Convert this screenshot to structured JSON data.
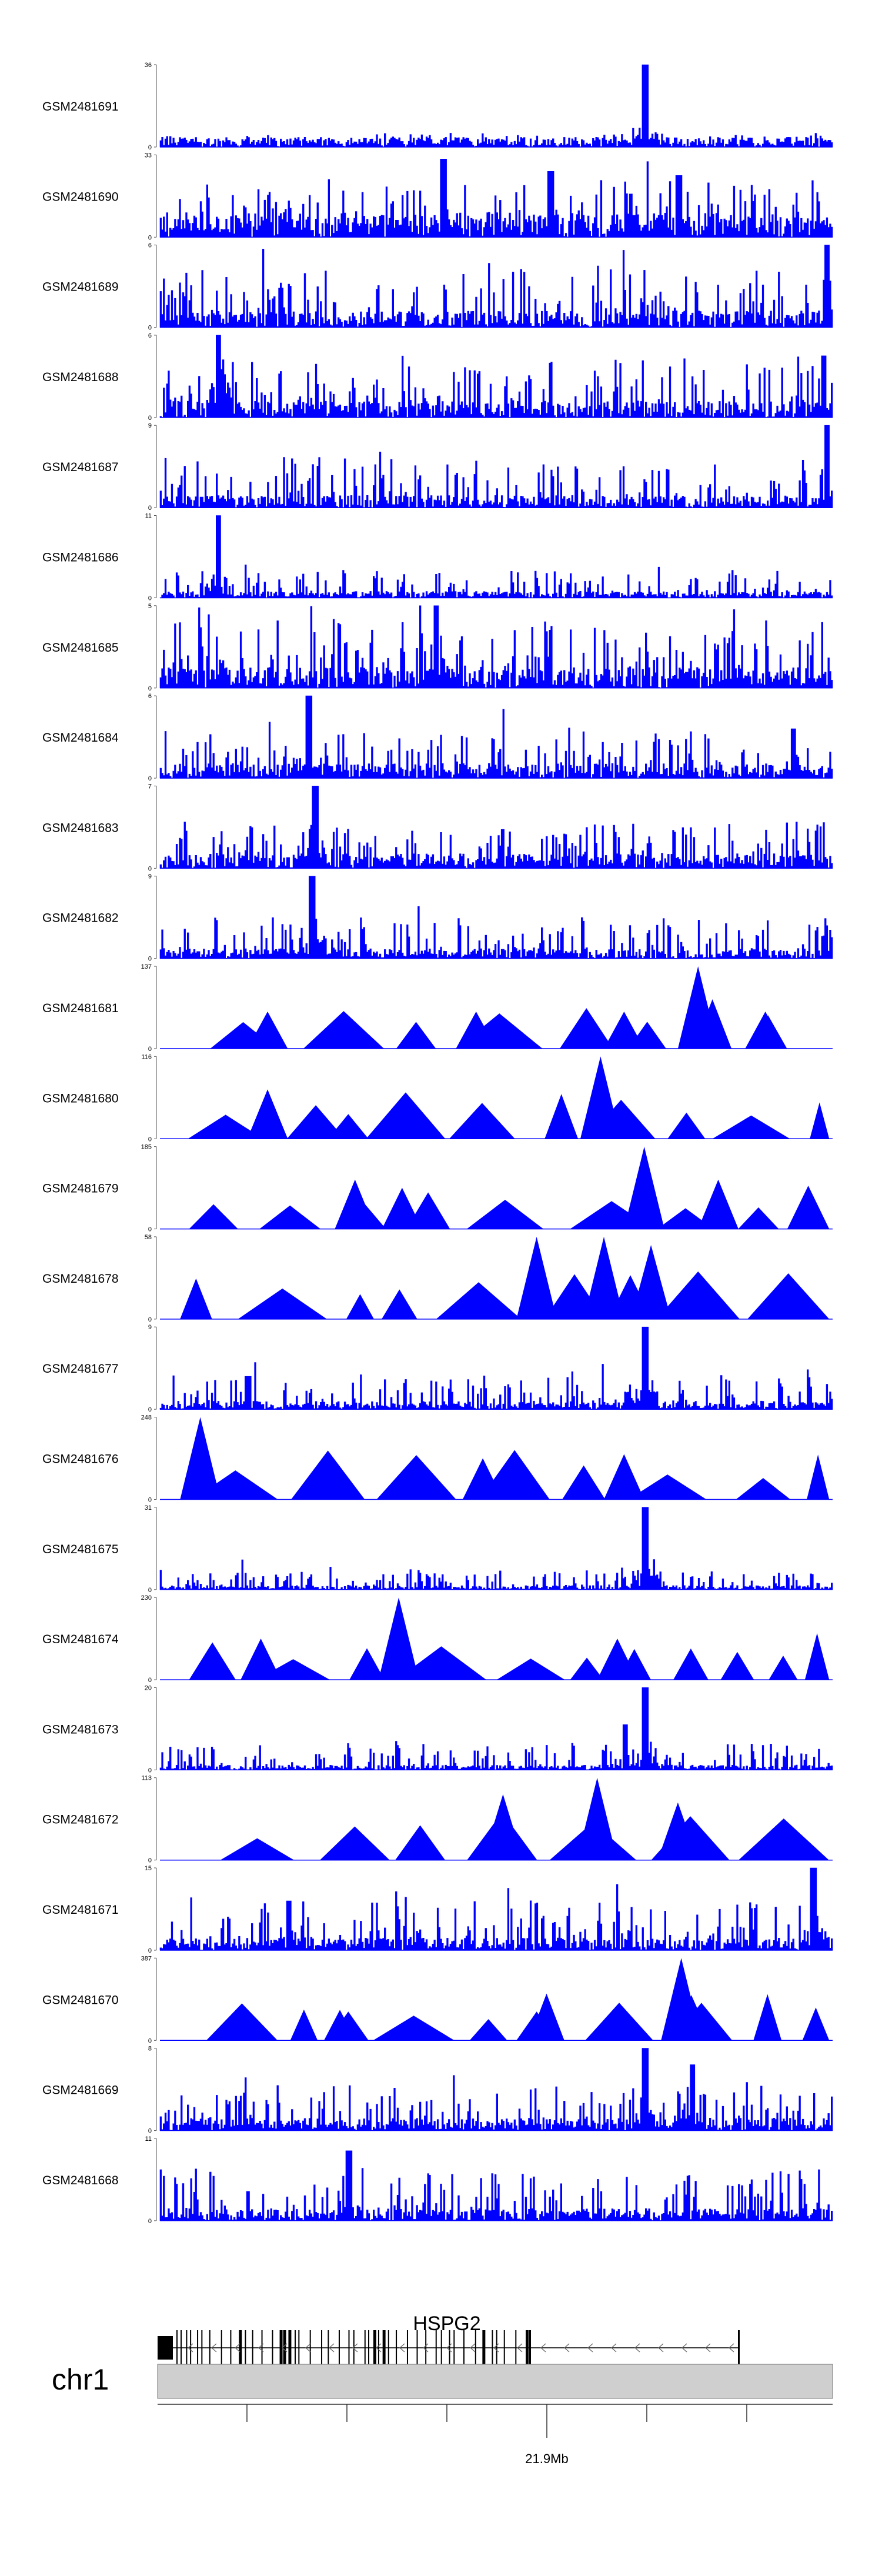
{
  "chart_data": {
    "type": "area",
    "color": "#0000ff",
    "tracks": [
      {
        "name": "GSM2481691",
        "ymax": 36,
        "peaks": [
          [
            0.72,
            1.0
          ]
        ],
        "base": 0.12,
        "noise": 0.06,
        "style": "dense"
      },
      {
        "name": "GSM2481690",
        "ymax": 33,
        "peaks": [
          [
            0.42,
            0.95
          ],
          [
            0.58,
            0.8
          ],
          [
            0.77,
            0.75
          ]
        ],
        "base": 0.3,
        "noise": 0.45,
        "style": "mixed"
      },
      {
        "name": "GSM2481689",
        "ymax": 6,
        "peaks": [
          [
            0.99,
            1.0
          ]
        ],
        "base": 0.2,
        "noise": 0.6,
        "style": "dense"
      },
      {
        "name": "GSM2481688",
        "ymax": 6,
        "peaks": [
          [
            0.085,
            1.0
          ],
          [
            0.985,
            0.75
          ]
        ],
        "base": 0.2,
        "noise": 0.55,
        "style": "dense"
      },
      {
        "name": "GSM2481687",
        "ymax": 9,
        "peaks": [
          [
            0.99,
            1.0
          ]
        ],
        "base": 0.15,
        "noise": 0.5,
        "style": "dense"
      },
      {
        "name": "GSM2481686",
        "ymax": 11,
        "peaks": [
          [
            0.085,
            1.0
          ]
        ],
        "base": 0.08,
        "noise": 0.3,
        "style": "dense"
      },
      {
        "name": "GSM2481685",
        "ymax": 5,
        "peaks": [
          [
            0.41,
            1.0
          ]
        ],
        "base": 0.25,
        "noise": 0.65,
        "style": "dense"
      },
      {
        "name": "GSM2481684",
        "ymax": 6,
        "peaks": [
          [
            0.22,
            1.0
          ],
          [
            0.94,
            0.6
          ]
        ],
        "base": 0.18,
        "noise": 0.45,
        "style": "dense"
      },
      {
        "name": "GSM2481683",
        "ymax": 7,
        "peaks": [
          [
            0.23,
            1.0
          ]
        ],
        "base": 0.18,
        "noise": 0.45,
        "style": "dense"
      },
      {
        "name": "GSM2481682",
        "ymax": 9,
        "peaks": [
          [
            0.225,
            1.0
          ]
        ],
        "base": 0.12,
        "noise": 0.4,
        "style": "dense"
      },
      {
        "name": "GSM2481681",
        "ymax": 137,
        "peaks": [
          [
            0.8,
            1.0
          ],
          [
            0.47,
            0.45
          ],
          [
            0.16,
            0.45
          ],
          [
            0.69,
            0.45
          ],
          [
            0.9,
            0.45
          ]
        ],
        "base": 0,
        "noise": 0,
        "style": "triangles"
      },
      {
        "name": "GSM2481680",
        "ymax": 116,
        "peaks": [
          [
            0.655,
            1.0
          ],
          [
            0.16,
            0.6
          ],
          [
            0.28,
            0.3
          ]
        ],
        "base": 0,
        "noise": 0,
        "style": "triangles"
      },
      {
        "name": "GSM2481679",
        "ymax": 185,
        "peaks": [
          [
            0.72,
            1.0
          ],
          [
            0.29,
            0.6
          ],
          [
            0.36,
            0.5
          ],
          [
            0.83,
            0.6
          ]
        ],
        "base": 0,
        "noise": 0,
        "style": "triangles"
      },
      {
        "name": "GSM2481678",
        "ymax": 58,
        "peaks": [
          [
            0.56,
            1.0
          ],
          [
            0.66,
            1.0
          ],
          [
            0.73,
            0.9
          ]
        ],
        "base": 0,
        "noise": 0,
        "style": "triangles"
      },
      {
        "name": "GSM2481677",
        "ymax": 9,
        "peaks": [
          [
            0.72,
            1.0
          ],
          [
            0.13,
            0.4
          ]
        ],
        "base": 0.1,
        "noise": 0.35,
        "style": "dense"
      },
      {
        "name": "GSM2481676",
        "ymax": 248,
        "peaks": [
          [
            0.06,
            1.0
          ],
          [
            0.69,
            0.55
          ],
          [
            0.48,
            0.5
          ]
        ],
        "base": 0,
        "noise": 0,
        "style": "triangles"
      },
      {
        "name": "GSM2481675",
        "ymax": 31,
        "peaks": [
          [
            0.72,
            1.0
          ]
        ],
        "base": 0.05,
        "noise": 0.2,
        "style": "dense"
      },
      {
        "name": "GSM2481674",
        "ymax": 230,
        "peaks": [
          [
            0.355,
            1.0
          ],
          [
            0.15,
            0.5
          ],
          [
            0.68,
            0.5
          ]
        ],
        "base": 0,
        "noise": 0,
        "style": "triangles"
      },
      {
        "name": "GSM2481673",
        "ymax": 20,
        "peaks": [
          [
            0.72,
            1.0
          ],
          [
            0.69,
            0.55
          ]
        ],
        "base": 0.06,
        "noise": 0.3,
        "style": "dense"
      },
      {
        "name": "GSM2481672",
        "ymax": 113,
        "peaks": [
          [
            0.65,
            1.0
          ],
          [
            0.51,
            0.8
          ],
          [
            0.77,
            0.7
          ]
        ],
        "base": 0,
        "noise": 0,
        "style": "triangles"
      },
      {
        "name": "GSM2481671",
        "ymax": 15,
        "peaks": [
          [
            0.97,
            1.0
          ],
          [
            0.19,
            0.6
          ]
        ],
        "base": 0.15,
        "noise": 0.5,
        "style": "dense"
      },
      {
        "name": "GSM2481670",
        "ymax": 387,
        "peaks": [
          [
            0.775,
            1.0
          ],
          [
            0.79,
            0.55
          ],
          [
            0.28,
            0.35
          ],
          [
            0.56,
            0.35
          ]
        ],
        "base": 0,
        "noise": 0,
        "style": "triangles"
      },
      {
        "name": "GSM2481669",
        "ymax": 8,
        "peaks": [
          [
            0.72,
            1.0
          ],
          [
            0.79,
            0.8
          ]
        ],
        "base": 0.15,
        "noise": 0.45,
        "style": "dense"
      },
      {
        "name": "GSM2481668",
        "ymax": 11,
        "peaks": [
          [
            0.28,
            0.85
          ]
        ],
        "base": 0.15,
        "noise": 0.55,
        "style": "dense"
      }
    ],
    "gene": {
      "name": "HSPG2",
      "strand": "-"
    },
    "chromosome": "chr1",
    "axis_label": "21.9Mb",
    "ymin": 0
  }
}
